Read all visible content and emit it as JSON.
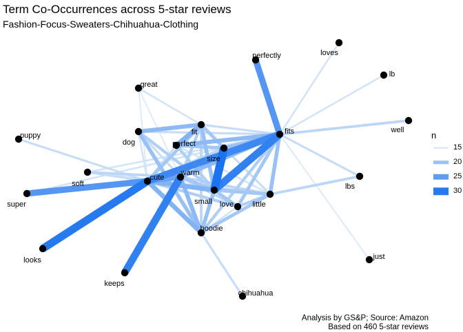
{
  "header": {
    "title": "Term Co-Occurrences across 5-star reviews",
    "subtitle": "Fashion-Focus-Sweaters-Chihuahua-Clothing"
  },
  "caption": {
    "line1": "Analysis by GS&P; Source: Amazon",
    "line2": "Based on 460 5-star reviews"
  },
  "legend": {
    "title": "n",
    "entries": [
      {
        "label": "15",
        "n": 15
      },
      {
        "label": "20",
        "n": 20
      },
      {
        "label": "25",
        "n": 25
      },
      {
        "label": "30",
        "n": 30
      }
    ]
  },
  "colors": {
    "edge_low": "#deebf7",
    "edge_high": "#1a73f0",
    "node": "#000000"
  },
  "chart_data": {
    "type": "network",
    "nodes": [
      "loves",
      "perfectly",
      "lb",
      "great",
      "well",
      "fits",
      "fit",
      "dog",
      "puppy",
      "perfect",
      "size",
      "n",
      "soft",
      "cute",
      "warm",
      "lbs",
      "super",
      "small",
      "love",
      "little",
      "hoodie",
      "looks",
      "just",
      "keeps",
      "chihuahua"
    ],
    "edges": [
      {
        "from": "perfectly",
        "to": "fits",
        "n": 26
      },
      {
        "from": "fits",
        "to": "loves",
        "n": 15
      },
      {
        "from": "fits",
        "to": "lb",
        "n": 15
      },
      {
        "from": "fits",
        "to": "well",
        "n": 17
      },
      {
        "from": "fits",
        "to": "lbs",
        "n": 16
      },
      {
        "from": "fits",
        "to": "just",
        "n": 14
      },
      {
        "from": "fits",
        "to": "cute",
        "n": 28
      },
      {
        "from": "fits",
        "to": "small",
        "n": 29
      },
      {
        "from": "fits",
        "to": "little",
        "n": 20
      },
      {
        "from": "fits",
        "to": "perfect",
        "n": 21
      },
      {
        "from": "fits",
        "to": "warm",
        "n": 21
      },
      {
        "from": "fits",
        "to": "fit",
        "n": 16
      },
      {
        "from": "fits",
        "to": "soft",
        "n": 15
      },
      {
        "from": "fits",
        "to": "love",
        "n": 19
      },
      {
        "from": "fits",
        "to": "hoodie",
        "n": 18
      },
      {
        "from": "fits",
        "to": "dog",
        "n": 16
      },
      {
        "from": "fits",
        "to": "size",
        "n": 20
      },
      {
        "from": "size",
        "to": "small",
        "n": 31
      },
      {
        "from": "size",
        "to": "fit",
        "n": 19
      },
      {
        "from": "size",
        "to": "perfect",
        "n": 19
      },
      {
        "from": "size",
        "to": "cute",
        "n": 17
      },
      {
        "from": "size",
        "to": "little",
        "n": 15
      },
      {
        "from": "great",
        "to": "fit",
        "n": 15
      },
      {
        "from": "great",
        "to": "warm",
        "n": 14
      },
      {
        "from": "great",
        "to": "cute",
        "n": 14
      },
      {
        "from": "dog",
        "to": "fit",
        "n": 21
      },
      {
        "from": "dog",
        "to": "hoodie",
        "n": 20
      },
      {
        "from": "dog",
        "to": "small",
        "n": 18
      },
      {
        "from": "dog",
        "to": "warm",
        "n": 16
      },
      {
        "from": "dog",
        "to": "cute",
        "n": 15
      },
      {
        "from": "puppy",
        "to": "cute",
        "n": 16
      },
      {
        "from": "fit",
        "to": "perfect",
        "n": 22
      },
      {
        "from": "fit",
        "to": "small",
        "n": 20
      },
      {
        "from": "fit",
        "to": "cute",
        "n": 19
      },
      {
        "from": "fit",
        "to": "warm",
        "n": 18
      },
      {
        "from": "fit",
        "to": "hoodie",
        "n": 17
      },
      {
        "from": "fit",
        "to": "little",
        "n": 16
      },
      {
        "from": "perfect",
        "to": "small",
        "n": 18
      },
      {
        "from": "perfect",
        "to": "cute",
        "n": 16
      },
      {
        "from": "perfect",
        "to": "little",
        "n": 15
      },
      {
        "from": "soft",
        "to": "warm",
        "n": 17
      },
      {
        "from": "soft",
        "to": "cute",
        "n": 16
      },
      {
        "from": "soft",
        "to": "little",
        "n": 15
      },
      {
        "from": "super",
        "to": "cute",
        "n": 26
      },
      {
        "from": "super",
        "to": "warm",
        "n": 20
      },
      {
        "from": "super",
        "to": "fits",
        "n": 15
      },
      {
        "from": "cute",
        "to": "looks",
        "n": 30
      },
      {
        "from": "cute",
        "to": "warm",
        "n": 24
      },
      {
        "from": "cute",
        "to": "small",
        "n": 22
      },
      {
        "from": "cute",
        "to": "hoodie",
        "n": 22
      },
      {
        "from": "cute",
        "to": "love",
        "n": 18
      },
      {
        "from": "cute",
        "to": "little",
        "n": 18
      },
      {
        "from": "warm",
        "to": "keeps",
        "n": 29
      },
      {
        "from": "warm",
        "to": "hoodie",
        "n": 21
      },
      {
        "from": "warm",
        "to": "small",
        "n": 19
      },
      {
        "from": "warm",
        "to": "love",
        "n": 17
      },
      {
        "from": "warm",
        "to": "little",
        "n": 17
      },
      {
        "from": "small",
        "to": "hoodie",
        "n": 20
      },
      {
        "from": "small",
        "to": "love",
        "n": 19
      },
      {
        "from": "small",
        "to": "little",
        "n": 19
      },
      {
        "from": "little",
        "to": "love",
        "n": 18
      },
      {
        "from": "little",
        "to": "hoodie",
        "n": 19
      },
      {
        "from": "little",
        "to": "lbs",
        "n": 17
      },
      {
        "from": "hoodie",
        "to": "chihuahua",
        "n": 16
      },
      {
        "from": "love",
        "to": "hoodie",
        "n": 15
      }
    ]
  }
}
